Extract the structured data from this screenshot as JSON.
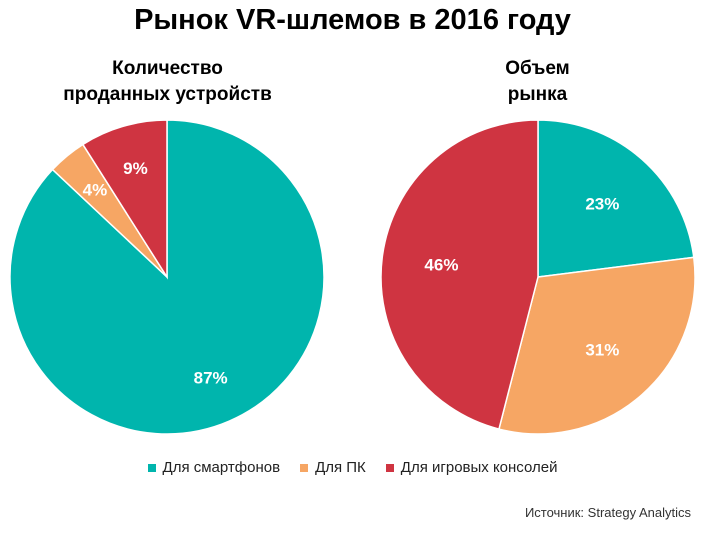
{
  "title": "Рынок VR-шлемов в 2016 году",
  "source": "Источник: Strategy Analytics",
  "colors": {
    "smartphone": "#00b5ad",
    "pc": "#f6a664",
    "console": "#cf3441"
  },
  "chart_data": [
    {
      "type": "pie",
      "title_lines": [
        "Количество",
        "проданных устройств"
      ],
      "categories": [
        "Для смартфонов",
        "Для ПК",
        "Для игровых консолей"
      ],
      "values": [
        87,
        4,
        9
      ],
      "labels": [
        "87%",
        "4%",
        "9%"
      ]
    },
    {
      "type": "pie",
      "title_lines": [
        "Объем",
        "рынка"
      ],
      "categories": [
        "Для смартфонов",
        "Для ПК",
        "Для игровых консолей"
      ],
      "values": [
        23,
        31,
        46
      ],
      "labels": [
        "23%",
        "31%",
        "46%"
      ]
    }
  ],
  "legend": [
    {
      "label": "Для смартфонов",
      "color": "#00b5ad"
    },
    {
      "label": "Для ПК",
      "color": "#f6a664"
    },
    {
      "label": "Для игровых консолей",
      "color": "#cf3441"
    }
  ]
}
